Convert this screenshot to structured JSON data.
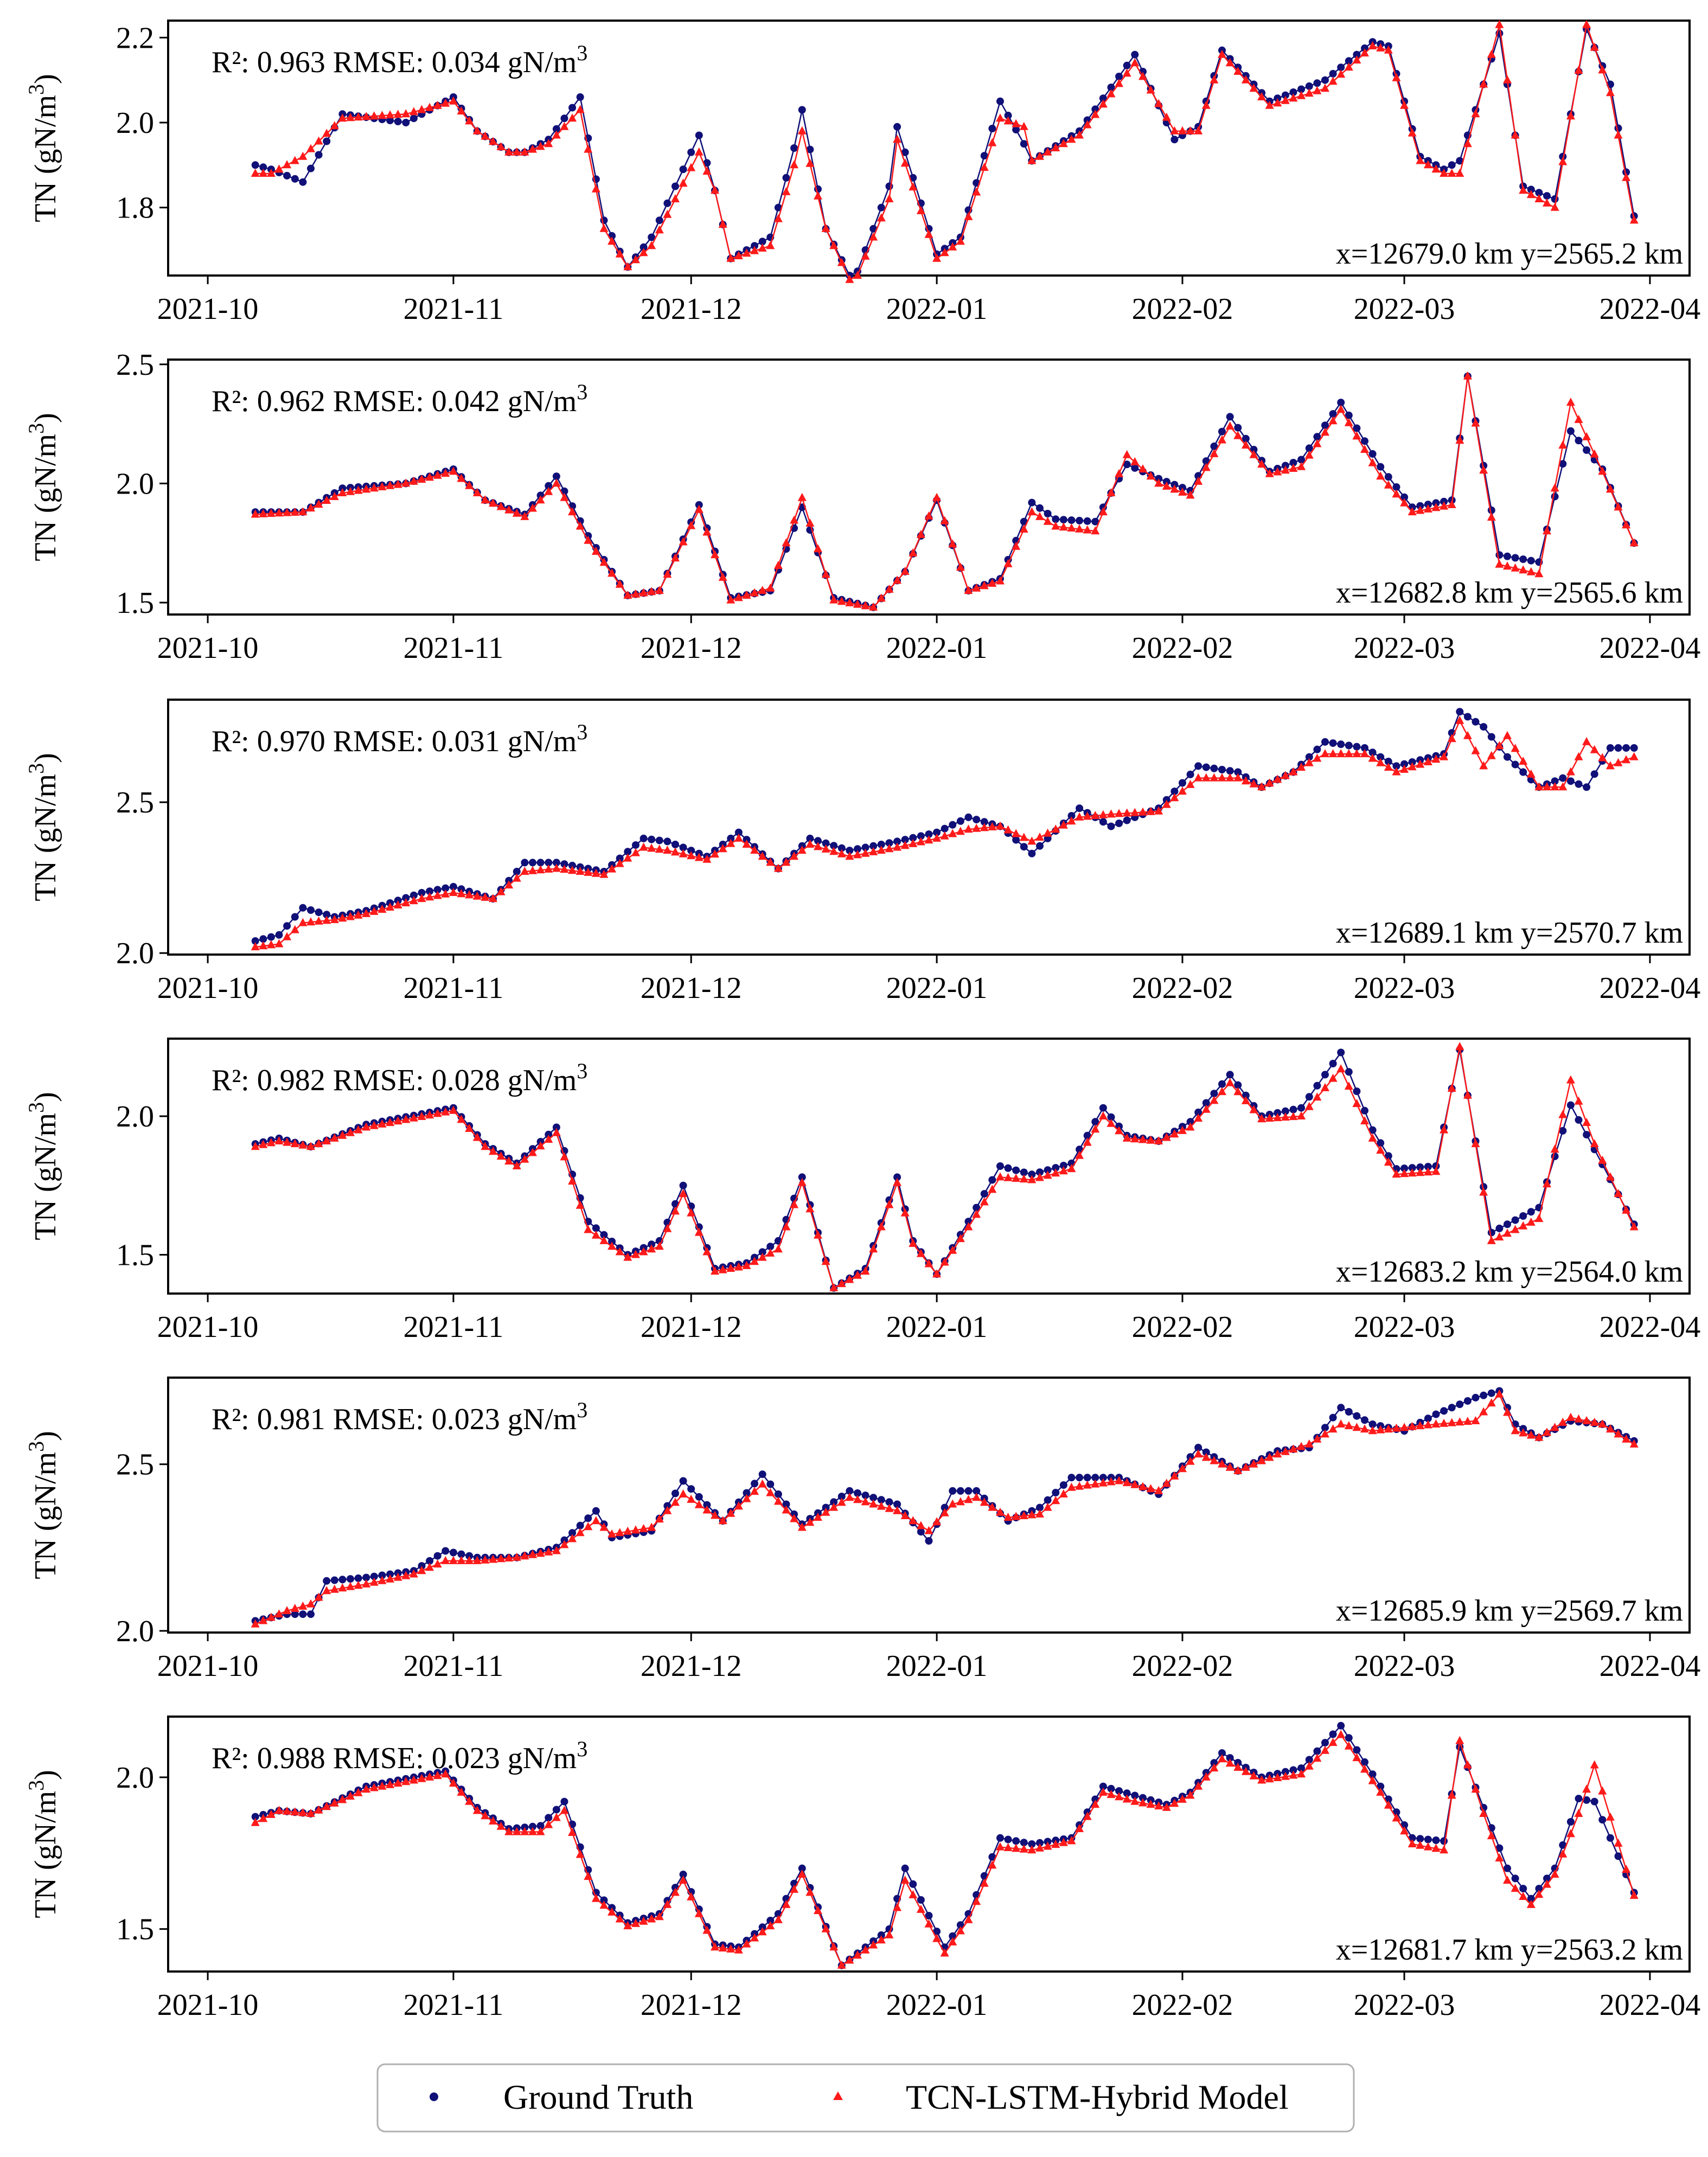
{
  "figure": {
    "legend": {
      "gt_label": "Ground Truth",
      "model_label": "TCN-LSTM-Hybrid Model"
    },
    "colors": {
      "ground_truth": "#101078",
      "model": "#ff1a1a",
      "axis": "#000000"
    }
  },
  "chart_data": [
    {
      "type": "line",
      "metrics_text": "R²: 0.963 RMSE: 0.034 gN/m",
      "metrics_sup": "3",
      "location_text": "x=12679.0 km y=2565.2 km",
      "ylabel": "TN (gN/m",
      "ylabel_sup": "3",
      "ylabel_close": ")",
      "xlim_days": [
        -5,
        187
      ],
      "ylim": [
        1.64,
        2.24
      ],
      "yticks": [
        1.8,
        2.0,
        2.2
      ],
      "ytick_labels": [
        "1.8",
        "2.0",
        "2.2"
      ],
      "xticks_days": [
        0,
        31,
        61,
        92,
        123,
        151,
        182
      ],
      "xtick_labels": [
        "2021-10",
        "2021-11",
        "2021-12",
        "2022-01",
        "2022-02",
        "2022-03",
        "2022-04"
      ],
      "start_day": 6,
      "end_day": 180,
      "keyframes_days": [
        6,
        8,
        12,
        17,
        25,
        31,
        34,
        38,
        40,
        43,
        47,
        50,
        53,
        56,
        62,
        64,
        66,
        71,
        74,
        75,
        78,
        81,
        82,
        86,
        87,
        92,
        95,
        100,
        103,
        104,
        110,
        117,
        122,
        125,
        128,
        134,
        141,
        147,
        149,
        153,
        156,
        158,
        163,
        166,
        170,
        174,
        177,
        180
      ],
      "series": [
        {
          "name": "Ground Truth",
          "marker": "circle",
          "keyframes": [
            1.9,
            1.89,
            1.86,
            2.02,
            2.0,
            2.06,
            1.98,
            1.93,
            1.93,
            1.96,
            2.06,
            1.77,
            1.66,
            1.73,
            1.97,
            1.84,
            1.68,
            1.73,
            1.94,
            2.03,
            1.75,
            1.64,
            1.65,
            1.85,
            1.99,
            1.69,
            1.73,
            2.05,
            1.95,
            1.91,
            1.98,
            2.16,
            1.96,
            1.99,
            2.17,
            2.05,
            2.1,
            2.19,
            2.18,
            1.92,
            1.89,
            1.91,
            2.21,
            1.85,
            1.82,
            2.22,
            2.09,
            1.78
          ]
        },
        {
          "name": "TCN-LSTM-Hybrid Model",
          "marker": "triangle",
          "keyframes": [
            1.88,
            1.88,
            1.92,
            2.01,
            2.02,
            2.05,
            1.98,
            1.93,
            1.93,
            1.95,
            2.03,
            1.75,
            1.66,
            1.71,
            1.93,
            1.84,
            1.68,
            1.71,
            1.9,
            1.98,
            1.75,
            1.63,
            1.64,
            1.82,
            1.96,
            1.68,
            1.72,
            2.01,
            1.99,
            1.91,
            1.97,
            2.14,
            1.98,
            1.98,
            2.16,
            2.04,
            2.08,
            2.18,
            2.17,
            1.91,
            1.88,
            1.88,
            2.23,
            1.84,
            1.8,
            2.23,
            2.07,
            1.77
          ]
        }
      ]
    },
    {
      "type": "line",
      "metrics_text": "R²: 0.962 RMSE: 0.042 gN/m",
      "metrics_sup": "3",
      "location_text": "x=12682.8 km y=2565.6 km",
      "ylabel": "TN (gN/m",
      "ylabel_sup": "3",
      "ylabel_close": ")",
      "xlim_days": [
        -5,
        187
      ],
      "ylim": [
        1.45,
        2.52
      ],
      "yticks": [
        1.5,
        2.0,
        2.5
      ],
      "ytick_labels": [
        "1.5",
        "2.0",
        "2.5"
      ],
      "xticks_days": [
        0,
        31,
        61,
        92,
        123,
        151,
        182
      ],
      "xtick_labels": [
        "2021-10",
        "2021-11",
        "2021-12",
        "2022-01",
        "2022-02",
        "2022-03",
        "2022-04"
      ],
      "start_day": 6,
      "end_day": 180,
      "keyframes_days": [
        6,
        12,
        17,
        25,
        31,
        35,
        40,
        44,
        48,
        53,
        57,
        62,
        66,
        71,
        75,
        79,
        84,
        88,
        92,
        96,
        100,
        104,
        107,
        112,
        116,
        120,
        124,
        129,
        134,
        138,
        143,
        148,
        152,
        157,
        159,
        163,
        168,
        172,
        176,
        180
      ],
      "series": [
        {
          "name": "Ground Truth",
          "marker": "circle",
          "keyframes": [
            1.88,
            1.88,
            1.98,
            2.0,
            2.06,
            1.93,
            1.87,
            2.03,
            1.78,
            1.53,
            1.55,
            1.91,
            1.52,
            1.55,
            1.9,
            1.52,
            1.48,
            1.63,
            1.93,
            1.55,
            1.6,
            1.92,
            1.85,
            1.84,
            2.08,
            2.02,
            1.97,
            2.28,
            2.05,
            2.1,
            2.34,
            2.07,
            1.9,
            1.93,
            2.45,
            1.7,
            1.67,
            2.22,
            2.06,
            1.75
          ]
        },
        {
          "name": "TCN-LSTM-Hybrid Model",
          "marker": "triangle",
          "keyframes": [
            1.87,
            1.88,
            1.96,
            2.0,
            2.05,
            1.93,
            1.86,
            2.0,
            1.76,
            1.53,
            1.55,
            1.89,
            1.51,
            1.56,
            1.94,
            1.51,
            1.48,
            1.63,
            1.94,
            1.55,
            1.59,
            1.88,
            1.82,
            1.8,
            2.12,
            2.0,
            1.95,
            2.24,
            2.04,
            2.07,
            2.31,
            2.03,
            1.88,
            1.91,
            2.45,
            1.66,
            1.62,
            2.34,
            2.05,
            1.75
          ]
        }
      ]
    },
    {
      "type": "line",
      "metrics_text": "R²: 0.970 RMSE: 0.031 gN/m",
      "metrics_sup": "3",
      "location_text": "x=12689.1 km y=2570.7 km",
      "ylabel": "TN (gN/m",
      "ylabel_sup": "3",
      "ylabel_close": ")",
      "xlim_days": [
        -5,
        187
      ],
      "ylim": [
        1.995,
        2.84
      ],
      "yticks": [
        2.0,
        2.5
      ],
      "ytick_labels": [
        "2.0",
        "2.5"
      ],
      "xticks_days": [
        0,
        31,
        61,
        92,
        123,
        151,
        182
      ],
      "xtick_labels": [
        "2021-10",
        "2021-11",
        "2021-12",
        "2022-01",
        "2022-02",
        "2022-03",
        "2022-04"
      ],
      "start_day": 6,
      "end_day": 180,
      "keyframes_days": [
        6,
        9,
        12,
        16,
        20,
        27,
        31,
        36,
        40,
        44,
        50,
        55,
        58,
        63,
        67,
        72,
        76,
        81,
        87,
        92,
        96,
        100,
        104,
        110,
        114,
        120,
        125,
        130,
        133,
        137,
        141,
        146,
        150,
        156,
        158,
        161,
        164,
        168,
        171,
        174,
        177,
        180
      ],
      "series": [
        {
          "name": "Ground Truth",
          "marker": "circle",
          "keyframes": [
            2.04,
            2.06,
            2.15,
            2.12,
            2.14,
            2.2,
            2.22,
            2.18,
            2.3,
            2.3,
            2.27,
            2.38,
            2.37,
            2.32,
            2.4,
            2.28,
            2.38,
            2.34,
            2.37,
            2.4,
            2.45,
            2.42,
            2.33,
            2.48,
            2.42,
            2.48,
            2.62,
            2.6,
            2.55,
            2.6,
            2.7,
            2.68,
            2.62,
            2.66,
            2.8,
            2.75,
            2.65,
            2.55,
            2.58,
            2.55,
            2.68,
            2.68
          ]
        },
        {
          "name": "TCN-LSTM-Hybrid Model",
          "marker": "triangle",
          "keyframes": [
            2.02,
            2.03,
            2.1,
            2.11,
            2.13,
            2.18,
            2.2,
            2.18,
            2.27,
            2.28,
            2.26,
            2.35,
            2.34,
            2.31,
            2.38,
            2.28,
            2.36,
            2.32,
            2.35,
            2.38,
            2.41,
            2.42,
            2.37,
            2.45,
            2.46,
            2.47,
            2.58,
            2.58,
            2.55,
            2.6,
            2.66,
            2.66,
            2.6,
            2.65,
            2.77,
            2.62,
            2.72,
            2.55,
            2.55,
            2.7,
            2.62,
            2.65
          ]
        }
      ]
    },
    {
      "type": "line",
      "metrics_text": "R²: 0.982 RMSE: 0.028 gN/m",
      "metrics_sup": "3",
      "location_text": "x=12683.2 km y=2564.0 km",
      "ylabel": "TN (gN/m",
      "ylabel_sup": "3",
      "ylabel_close": ")",
      "xlim_days": [
        -5,
        187
      ],
      "ylim": [
        1.36,
        2.28
      ],
      "yticks": [
        1.5,
        2.0
      ],
      "ytick_labels": [
        "1.5",
        "2.0"
      ],
      "xticks_days": [
        0,
        31,
        61,
        92,
        123,
        151,
        182
      ],
      "xtick_labels": [
        "2021-10",
        "2021-11",
        "2021-12",
        "2022-01",
        "2022-02",
        "2022-03",
        "2022-04"
      ],
      "start_day": 6,
      "end_day": 180,
      "keyframes_days": [
        6,
        9,
        13,
        20,
        31,
        35,
        39,
        44,
        48,
        53,
        57,
        60,
        64,
        68,
        72,
        75,
        79,
        83,
        87,
        89,
        92,
        96,
        100,
        104,
        109,
        113,
        116,
        120,
        124,
        129,
        133,
        138,
        143,
        147,
        150,
        155,
        158,
        162,
        168,
        172,
        175,
        180
      ],
      "series": [
        {
          "name": "Ground Truth",
          "marker": "circle",
          "keyframes": [
            1.9,
            1.92,
            1.89,
            1.97,
            2.03,
            1.9,
            1.83,
            1.96,
            1.62,
            1.5,
            1.55,
            1.75,
            1.45,
            1.47,
            1.55,
            1.78,
            1.38,
            1.45,
            1.78,
            1.55,
            1.43,
            1.62,
            1.82,
            1.79,
            1.83,
            2.03,
            1.93,
            1.91,
            1.98,
            2.15,
            2.0,
            2.03,
            2.23,
            1.95,
            1.81,
            1.82,
            2.24,
            1.58,
            1.67,
            2.04,
            1.88,
            1.61
          ]
        },
        {
          "name": "TCN-LSTM-Hybrid Model",
          "marker": "triangle",
          "keyframes": [
            1.89,
            1.91,
            1.89,
            1.96,
            2.02,
            1.89,
            1.82,
            1.94,
            1.59,
            1.49,
            1.53,
            1.72,
            1.44,
            1.46,
            1.52,
            1.76,
            1.38,
            1.44,
            1.76,
            1.54,
            1.43,
            1.6,
            1.78,
            1.77,
            1.81,
            2.0,
            1.92,
            1.91,
            1.96,
            2.12,
            1.99,
            2.0,
            2.17,
            1.92,
            1.79,
            1.8,
            2.25,
            1.55,
            1.63,
            2.13,
            1.9,
            1.6
          ]
        }
      ]
    },
    {
      "type": "line",
      "metrics_text": "R²: 0.981 RMSE: 0.023 gN/m",
      "metrics_sup": "3",
      "location_text": "x=12685.9 km y=2569.7 km",
      "ylabel": "TN (gN/m",
      "ylabel_sup": "3",
      "ylabel_close": ")",
      "xlim_days": [
        -5,
        187
      ],
      "ylim": [
        1.995,
        2.76
      ],
      "yticks": [
        2.0,
        2.5
      ],
      "ytick_labels": [
        "2.0",
        "2.5"
      ],
      "xticks_days": [
        0,
        31,
        61,
        92,
        123,
        151,
        182
      ],
      "xtick_labels": [
        "2021-10",
        "2021-11",
        "2021-12",
        "2022-01",
        "2022-02",
        "2022-03",
        "2022-04"
      ],
      "start_day": 6,
      "end_day": 180,
      "keyframes_days": [
        6,
        10,
        13,
        15,
        20,
        26,
        30,
        34,
        39,
        44,
        49,
        51,
        56,
        60,
        65,
        70,
        75,
        81,
        87,
        91,
        94,
        97,
        101,
        105,
        109,
        115,
        120,
        125,
        130,
        135,
        139,
        143,
        147,
        151,
        155,
        160,
        163,
        165,
        168,
        172,
        176,
        180
      ],
      "series": [
        {
          "name": "Ground Truth",
          "marker": "circle",
          "keyframes": [
            2.03,
            2.05,
            2.05,
            2.15,
            2.16,
            2.18,
            2.24,
            2.22,
            2.22,
            2.25,
            2.36,
            2.28,
            2.3,
            2.45,
            2.33,
            2.47,
            2.32,
            2.42,
            2.38,
            2.27,
            2.42,
            2.42,
            2.33,
            2.37,
            2.46,
            2.46,
            2.41,
            2.55,
            2.48,
            2.54,
            2.55,
            2.67,
            2.62,
            2.6,
            2.65,
            2.7,
            2.72,
            2.62,
            2.58,
            2.63,
            2.62,
            2.57
          ]
        },
        {
          "name": "TCN-LSTM-Hybrid Model",
          "marker": "triangle",
          "keyframes": [
            2.02,
            2.06,
            2.08,
            2.12,
            2.14,
            2.17,
            2.21,
            2.21,
            2.22,
            2.24,
            2.33,
            2.29,
            2.31,
            2.41,
            2.33,
            2.44,
            2.31,
            2.4,
            2.36,
            2.3,
            2.38,
            2.4,
            2.34,
            2.35,
            2.43,
            2.45,
            2.42,
            2.53,
            2.48,
            2.53,
            2.56,
            2.62,
            2.6,
            2.61,
            2.62,
            2.63,
            2.71,
            2.6,
            2.58,
            2.64,
            2.62,
            2.56
          ]
        }
      ]
    },
    {
      "type": "line",
      "metrics_text": "R²: 0.988 RMSE: 0.023 gN/m",
      "metrics_sup": "3",
      "location_text": "x=12681.7 km y=2563.2 km",
      "ylabel": "TN (gN/m",
      "ylabel_sup": "3",
      "ylabel_close": ")",
      "xlim_days": [
        -5,
        187
      ],
      "ylim": [
        1.36,
        2.2
      ],
      "yticks": [
        1.5,
        2.0
      ],
      "ytick_labels": [
        "1.5",
        "2.0"
      ],
      "xticks_days": [
        0,
        31,
        61,
        92,
        123,
        151,
        182
      ],
      "xtick_labels": [
        "2021-10",
        "2021-11",
        "2021-12",
        "2022-01",
        "2022-02",
        "2022-03",
        "2022-04"
      ],
      "start_day": 6,
      "end_day": 180,
      "keyframes_days": [
        6,
        9,
        13,
        20,
        30,
        34,
        38,
        42,
        45,
        49,
        53,
        57,
        60,
        64,
        67,
        72,
        75,
        80,
        86,
        88,
        93,
        96,
        100,
        104,
        109,
        113,
        117,
        121,
        124,
        128,
        133,
        138,
        143,
        148,
        152,
        156,
        158,
        161,
        164,
        167,
        170,
        173,
        175,
        180
      ],
      "series": [
        {
          "name": "Ground Truth",
          "marker": "circle",
          "keyframes": [
            1.87,
            1.89,
            1.88,
            1.97,
            2.02,
            1.9,
            1.83,
            1.84,
            1.92,
            1.62,
            1.52,
            1.55,
            1.68,
            1.45,
            1.44,
            1.55,
            1.7,
            1.38,
            1.5,
            1.7,
            1.44,
            1.55,
            1.8,
            1.78,
            1.8,
            1.97,
            1.94,
            1.91,
            1.95,
            2.08,
            2.0,
            2.03,
            2.17,
            1.97,
            1.8,
            1.79,
            2.1,
            1.9,
            1.7,
            1.6,
            1.7,
            1.93,
            1.92,
            1.62
          ]
        },
        {
          "name": "TCN-LSTM-Hybrid Model",
          "marker": "triangle",
          "keyframes": [
            1.85,
            1.89,
            1.88,
            1.96,
            2.01,
            1.89,
            1.82,
            1.82,
            1.89,
            1.6,
            1.51,
            1.54,
            1.66,
            1.44,
            1.43,
            1.53,
            1.68,
            1.38,
            1.48,
            1.66,
            1.42,
            1.53,
            1.77,
            1.76,
            1.79,
            1.95,
            1.92,
            1.9,
            1.94,
            2.06,
            1.99,
            2.01,
            2.14,
            1.95,
            1.78,
            1.76,
            2.12,
            1.88,
            1.66,
            1.58,
            1.68,
            1.88,
            2.04,
            1.61
          ]
        }
      ]
    }
  ]
}
